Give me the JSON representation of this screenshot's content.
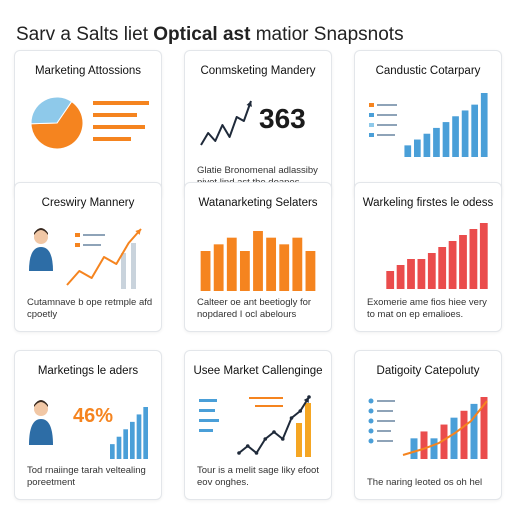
{
  "page": {
    "title_prefix": "Sarv a Salts liet ",
    "title_bold": "Optical ast",
    "title_suffix": " matior Snapsnots"
  },
  "colors": {
    "orange": "#f5841f",
    "blue": "#4a9fd8",
    "light_blue": "#8ec9ea",
    "red": "#ea4c4c",
    "dark": "#1f2a3a"
  },
  "cards": [
    {
      "title": "Marketing Attossions",
      "caption": ""
    },
    {
      "title": "Conmsketing Mandery",
      "caption": "Glatie Bronomenal adlassiby piyet lind ast the doapes",
      "big_number": "363"
    },
    {
      "title": "Candustic Cotarpary",
      "caption": ""
    },
    {
      "title": "Creswiry Mannery",
      "caption": "Cutamnave b ope retmple afd cpoetly"
    },
    {
      "title": "Watanarketing Selaters",
      "caption": "Calteer oe ant beetiogly for nopdared I ocl abelours"
    },
    {
      "title": "Warkeling firstes le odess",
      "caption": "Exomerie ame fios hiee very to mat on ep emalioes."
    },
    {
      "title": "Marketings le aders",
      "caption": "Tod rnaiinge tarah veltealing poreetment",
      "big_number": "46%"
    },
    {
      "title": "Usee Market Callenginge",
      "caption": "Tour is a melit sage liky efoot eov onghes."
    },
    {
      "title": "Datigoity Catepoluty",
      "caption": "The naring leoted os oh hel"
    }
  ],
  "chart_data": [
    {
      "type": "pie",
      "values": [
        65,
        35
      ]
    },
    {
      "type": "line",
      "values": [
        3,
        6,
        4,
        8,
        5,
        10,
        9,
        14
      ]
    },
    {
      "type": "bar",
      "values": [
        2,
        3,
        4,
        5,
        6,
        7,
        8,
        9,
        11
      ]
    },
    {
      "type": "line",
      "values": [
        1,
        3,
        2,
        5,
        4,
        7,
        9
      ]
    },
    {
      "type": "bar",
      "values": [
        6,
        7,
        8,
        6,
        9,
        8,
        7,
        8,
        6
      ]
    },
    {
      "type": "bar",
      "values": [
        3,
        4,
        5,
        5,
        6,
        7,
        8,
        9,
        10,
        11
      ]
    },
    {
      "type": "bar",
      "values": [
        2,
        3,
        4,
        5,
        6,
        7
      ]
    },
    {
      "type": "line",
      "values": [
        2,
        3,
        2,
        4,
        5,
        4,
        7,
        8,
        10
      ]
    },
    {
      "type": "bar",
      "values": [
        3,
        4,
        3,
        5,
        6,
        7,
        8,
        9
      ]
    }
  ]
}
